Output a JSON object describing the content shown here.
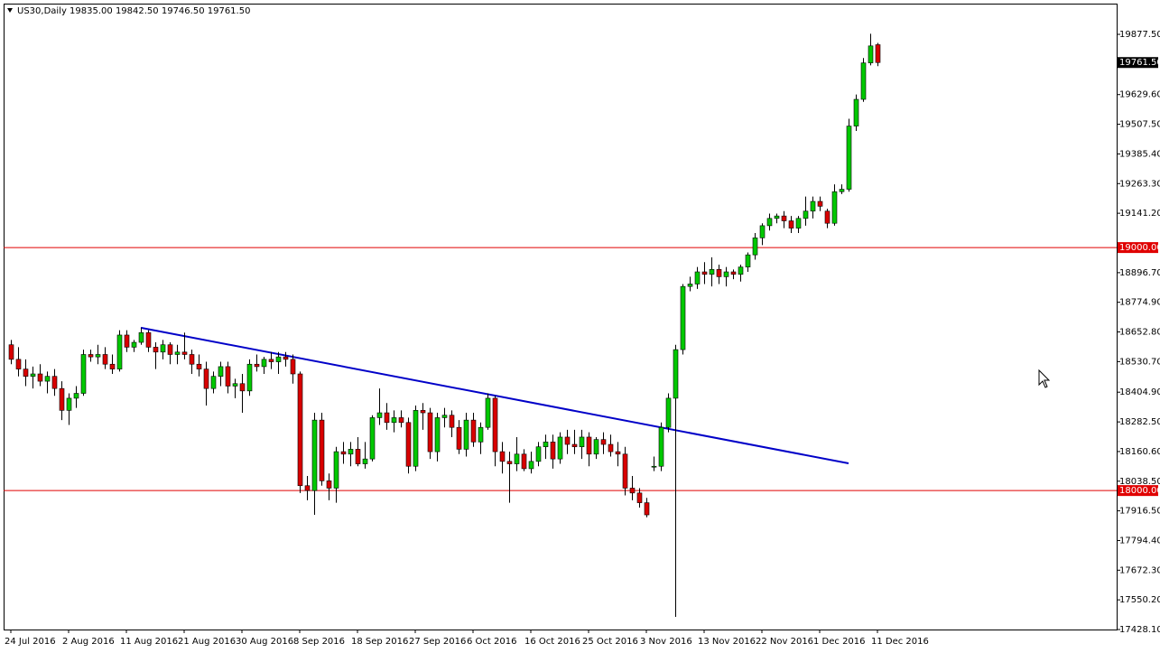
{
  "chart_data": {
    "type": "candlestick",
    "title": "US30,Daily  19835.00 19842.50 19746.50 19761.50",
    "categories": [
      "24 Jul 2016",
      null,
      null,
      null,
      null,
      null,
      null,
      null,
      "2 Aug 2016",
      null,
      null,
      null,
      null,
      null,
      null,
      null,
      "11 Aug 2016",
      null,
      null,
      null,
      null,
      null,
      null,
      null,
      "21 Aug 2016",
      null,
      null,
      null,
      null,
      null,
      null,
      null,
      "30 Aug 2016",
      null,
      null,
      null,
      null,
      null,
      null,
      null,
      "8 Sep 2016",
      null,
      null,
      null,
      null,
      null,
      null,
      null,
      "18 Sep 2016",
      null,
      null,
      null,
      null,
      null,
      null,
      null,
      "27 Sep 2016",
      null,
      null,
      null,
      null,
      null,
      null,
      null,
      "6 Oct 2016",
      null,
      null,
      null,
      null,
      null,
      null,
      null,
      "16 Oct 2016",
      null,
      null,
      null,
      null,
      null,
      null,
      null,
      "25 Oct 2016",
      null,
      null,
      null,
      null,
      null,
      null,
      null,
      "3 Nov 2016",
      null,
      null,
      null,
      null,
      null,
      null,
      null,
      "13 Nov 2016",
      null,
      null,
      null,
      null,
      null,
      null,
      null,
      "22 Nov 2016",
      null,
      null,
      null,
      null,
      null,
      null,
      null,
      "1 Dec 2016",
      null,
      null,
      null,
      null,
      null,
      null,
      null,
      "11 Dec 2016"
    ],
    "open": [
      18600,
      18540,
      18500,
      18470,
      18480,
      18450,
      18470,
      18420,
      18330,
      18380,
      18400,
      18560,
      18550,
      18560,
      18520,
      18500,
      18640,
      18590,
      18610,
      18650,
      18590,
      18570,
      18600,
      18560,
      18570,
      18560,
      18520,
      18500,
      18420,
      18470,
      18510,
      18430,
      18440,
      18410,
      18520,
      18510,
      18540,
      18530,
      18550,
      18540,
      18480,
      18020,
      18000,
      18290,
      18040,
      18010,
      18160,
      18150,
      18170,
      18110,
      18130,
      18300,
      18320,
      18280,
      18300,
      18280,
      18100,
      18330,
      18320,
      18160,
      18300,
      18310,
      18260,
      18170,
      18290,
      18200,
      18260,
      18380,
      18160,
      18120,
      18110,
      18150,
      18090,
      18120,
      18180,
      18200,
      18130,
      18220,
      18190,
      18180,
      18220,
      18150,
      18210,
      18190,
      18160,
      18150,
      18010,
      17990,
      17950,
      18100,
      18100,
      18260,
      18380,
      18580,
      18840,
      18850,
      18900,
      18890,
      18910,
      18880,
      18900,
      18890,
      18920,
      18970,
      19040,
      19090,
      19120,
      19130,
      19110,
      19080,
      19120,
      19150,
      19190,
      19150,
      19100,
      19230,
      19240,
      19500,
      19610,
      19760,
      19835
    ],
    "high": [
      18620,
      18590,
      18540,
      18510,
      18520,
      18490,
      18500,
      18450,
      18400,
      18430,
      18580,
      18580,
      18600,
      18590,
      18560,
      18660,
      18660,
      18620,
      18670,
      18660,
      18610,
      18620,
      18610,
      18600,
      18650,
      18580,
      18560,
      18530,
      18490,
      18530,
      18530,
      18460,
      18480,
      18540,
      18560,
      18550,
      18570,
      18570,
      18570,
      18560,
      18490,
      18060,
      18320,
      18320,
      18070,
      18180,
      18200,
      18200,
      18220,
      18200,
      18310,
      18420,
      18360,
      18330,
      18330,
      18300,
      18350,
      18360,
      18340,
      18320,
      18340,
      18330,
      18290,
      18320,
      18320,
      18280,
      18400,
      18390,
      18200,
      18160,
      18220,
      18170,
      18160,
      18200,
      18230,
      18230,
      18240,
      18250,
      18250,
      18250,
      18240,
      18220,
      18240,
      18230,
      18200,
      18180,
      18060,
      18010,
      17970,
      18140,
      18280,
      18400,
      18600,
      18850,
      18880,
      18920,
      18940,
      18960,
      18930,
      18920,
      18910,
      18930,
      18980,
      19060,
      19100,
      19140,
      19140,
      19150,
      19130,
      19130,
      19210,
      19210,
      19210,
      19160,
      19260,
      19260,
      19530,
      19630,
      19780,
      19880,
      19842.5
    ],
    "low": [
      18520,
      18470,
      18430,
      18420,
      18430,
      18400,
      18390,
      18290,
      18270,
      18340,
      18390,
      18530,
      18520,
      18500,
      18480,
      18490,
      18570,
      18570,
      18600,
      18570,
      18500,
      18540,
      18520,
      18520,
      18540,
      18480,
      18470,
      18350,
      18400,
      18430,
      18400,
      18380,
      18320,
      18390,
      18490,
      18480,
      18500,
      18480,
      18510,
      18440,
      17990,
      17960,
      17900,
      18020,
      17960,
      17950,
      18110,
      18100,
      18100,
      18090,
      18120,
      18270,
      18250,
      18240,
      18260,
      18070,
      18080,
      18250,
      18130,
      18120,
      18260,
      18220,
      18150,
      18140,
      18180,
      18150,
      18250,
      18100,
      18070,
      17950,
      18080,
      18080,
      18070,
      18100,
      18130,
      18090,
      18110,
      18150,
      18150,
      18130,
      18100,
      18130,
      18150,
      18140,
      18100,
      17980,
      17960,
      17930,
      17890,
      18080,
      18080,
      18240,
      17480,
      18560,
      18820,
      18830,
      18850,
      18840,
      18850,
      18840,
      18870,
      18860,
      18900,
      18950,
      19010,
      19070,
      19100,
      19080,
      19060,
      19060,
      19090,
      19120,
      19150,
      19080,
      19090,
      19220,
      19230,
      19480,
      19600,
      19750,
      19746.5
    ],
    "close": [
      18540,
      18500,
      18470,
      18480,
      18450,
      18470,
      18420,
      18330,
      18380,
      18400,
      18560,
      18550,
      18560,
      18520,
      18500,
      18640,
      18590,
      18610,
      18650,
      18590,
      18570,
      18600,
      18560,
      18570,
      18560,
      18520,
      18500,
      18420,
      18470,
      18510,
      18430,
      18440,
      18410,
      18520,
      18510,
      18540,
      18530,
      18550,
      18540,
      18480,
      18020,
      18000,
      18290,
      18040,
      18010,
      18160,
      18150,
      18170,
      18110,
      18130,
      18300,
      18320,
      18280,
      18300,
      18280,
      18100,
      18330,
      18320,
      18160,
      18300,
      18310,
      18260,
      18170,
      18290,
      18200,
      18260,
      18380,
      18160,
      18120,
      18110,
      18150,
      18090,
      18120,
      18180,
      18200,
      18130,
      18220,
      18190,
      18180,
      18220,
      18150,
      18210,
      18190,
      18160,
      18150,
      18010,
      17990,
      17950,
      17900,
      18100,
      18260,
      18380,
      18580,
      18840,
      18850,
      18900,
      18890,
      18910,
      18880,
      18900,
      18890,
      18920,
      18970,
      19040,
      19090,
      19120,
      19130,
      19110,
      19080,
      19120,
      19150,
      19190,
      19170,
      19100,
      19230,
      19240,
      19500,
      19610,
      19760,
      19830,
      19761.5
    ],
    "up_color": "#00c800",
    "down_color": "#d80000",
    "last_label": "19761.50",
    "hlines": [
      {
        "value": 19000,
        "label": "19000.00",
        "color": "#e00000"
      },
      {
        "value": 18000,
        "label": "18000.00",
        "color": "#e00000"
      }
    ],
    "trendline": {
      "color": "#0000c8",
      "start": [
        18,
        18670
      ],
      "end": [
        116,
        18112
      ]
    },
    "ylim": [
      17428.1,
      20004
    ],
    "yticks": [
      {
        "value": 19877.5,
        "label": "19877.50"
      },
      {
        "value": 19629.6,
        "label": "19629.60"
      },
      {
        "value": 19507.5,
        "label": "19507.50"
      },
      {
        "value": 19385.4,
        "label": "19385.40"
      },
      {
        "value": 19263.3,
        "label": "19263.30"
      },
      {
        "value": 19141.2,
        "label": "19141.20"
      },
      {
        "value": 18896.7,
        "label": "18896.70"
      },
      {
        "value": 18774.9,
        "label": "18774.90"
      },
      {
        "value": 18652.8,
        "label": "18652.80"
      },
      {
        "value": 18530.7,
        "label": "18530.70"
      },
      {
        "value": 18404.9,
        "label": "18404.90"
      },
      {
        "value": 18282.5,
        "label": "18282.50"
      },
      {
        "value": 18160.6,
        "label": "18160.60"
      },
      {
        "value": 18038.5,
        "label": "18038.50"
      },
      {
        "value": 17916.5,
        "label": "17916.50"
      },
      {
        "value": 17794.4,
        "label": "17794.40"
      },
      {
        "value": 17672.3,
        "label": "17672.30"
      },
      {
        "value": 17550.2,
        "label": "17550.20"
      },
      {
        "value": 17428.1,
        "label": "17428.10"
      }
    ],
    "grid": false
  }
}
